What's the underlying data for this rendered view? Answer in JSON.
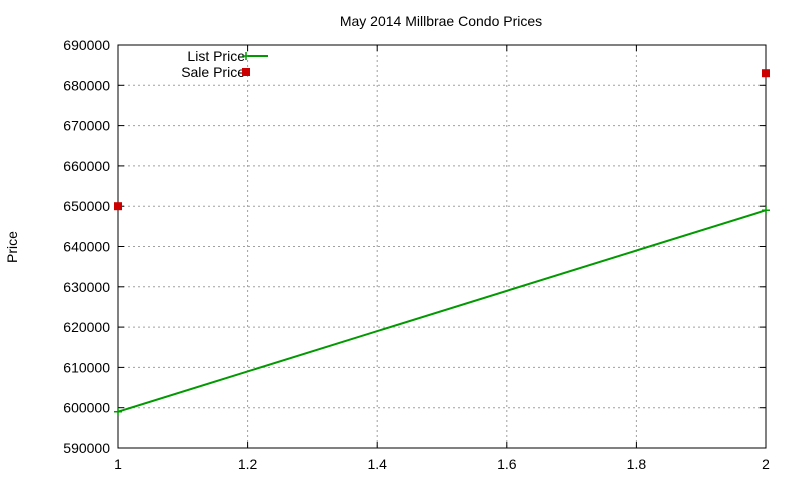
{
  "chart_data": {
    "type": "line",
    "title": "May 2014 Millbrae Condo Prices",
    "xlabel": "",
    "ylabel": "Price",
    "xlim": [
      1,
      2
    ],
    "ylim": [
      590000,
      690000
    ],
    "xticks": [
      1,
      1.2,
      1.4,
      1.6,
      1.8,
      2
    ],
    "xtick_labels": [
      "1",
      "1.2",
      "1.4",
      "1.6",
      "1.8",
      "2"
    ],
    "yticks": [
      590000,
      600000,
      610000,
      620000,
      630000,
      640000,
      650000,
      660000,
      670000,
      680000,
      690000
    ],
    "ytick_labels": [
      "590000",
      "600000",
      "610000",
      "620000",
      "630000",
      "640000",
      "650000",
      "660000",
      "670000",
      "680000",
      "690000"
    ],
    "grid": true,
    "legend_position": "top-left",
    "series": [
      {
        "name": "List Price",
        "kind": "line",
        "marker": "plus",
        "color": "#009900",
        "x": [
          1,
          2
        ],
        "y": [
          599000,
          649000
        ]
      },
      {
        "name": "Sale Price",
        "kind": "points",
        "marker": "square",
        "color": "#cc0000",
        "x": [
          1,
          2
        ],
        "y": [
          650000,
          683000
        ]
      }
    ]
  }
}
